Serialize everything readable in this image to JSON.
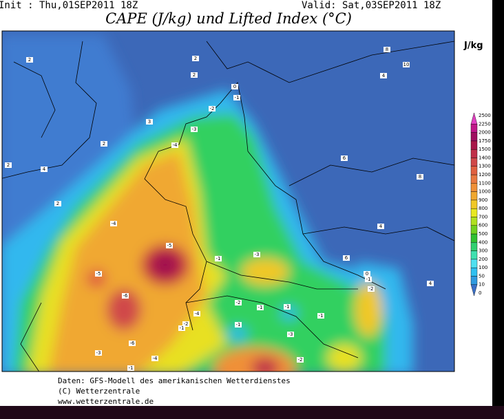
{
  "header": {
    "init": "Init : Thu,01SEP2011 18Z",
    "valid": "Valid: Sat,03SEP2011 18Z",
    "title": "CAPE (J/kg) und Lifted Index (°C)"
  },
  "unit": "J/kg",
  "colorbar": {
    "ticks": [
      0,
      10,
      50,
      100,
      200,
      300,
      400,
      500,
      600,
      700,
      800,
      900,
      1000,
      1100,
      1200,
      1300,
      1400,
      1500,
      1750,
      2000,
      2250,
      2500
    ],
    "colors": [
      "#3a70c8",
      "#2f9ae0",
      "#30c0f0",
      "#50e0f0",
      "#40e0b0",
      "#30d070",
      "#30c030",
      "#70d020",
      "#b0e020",
      "#e8e820",
      "#f0c828",
      "#f0a830",
      "#f09038",
      "#e87840",
      "#e06040",
      "#d04848",
      "#c03048",
      "#a81848",
      "#a01060",
      "#c01888",
      "#e040c0"
    ]
  },
  "map": {
    "labels": [
      "2",
      "2",
      "3",
      "0",
      "-1",
      "-2",
      "-3",
      "-4",
      "2",
      "2",
      "4",
      "2",
      "-4",
      "-5",
      "-5",
      "-6",
      "-6",
      "-1",
      "-3",
      "-4",
      "-2",
      "-2",
      "-1",
      "-1",
      "-1",
      "0",
      "-1",
      "-2",
      "8",
      "10",
      "4",
      "6",
      "8",
      "4",
      "6",
      "4",
      "2",
      "-3",
      "-4",
      "-1",
      "-2",
      "-3",
      "-1",
      "-1"
    ]
  },
  "footer": {
    "line1": "Daten: GFS-Modell des amerikanischen Wetterdienstes",
    "line2": "(C) Wetterzentrale",
    "line3": "www.wetterzentrale.de"
  }
}
